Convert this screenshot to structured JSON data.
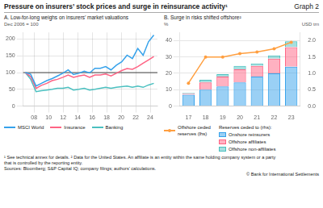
{
  "title": "Pressure on insurers’ stock prices and surge in reinsurance activity¹",
  "graph_label": "Graph 2",
  "footnotes": [
    "¹ See technical annex for details.   ² Data for the United States. An affiliate is an entity within the same holding company system or a party",
    "that is controlled by the reporting entity.",
    "Sources: Bloomberg; S&P Capital IQ; company filings; authors’ calculations."
  ],
  "credit": "© Bank for International Settlements",
  "chart_data": [
    {
      "type": "line",
      "title": "A. Low-for-long weighs on insurers’ market valuations",
      "ylabel": "Dec 2006 = 100",
      "x": [
        2006.8,
        2007.5375,
        2008.275,
        2009.0125,
        2009.75,
        2010.4875,
        2011.225,
        2011.9625,
        2012.7,
        2013.4375,
        2014.175,
        2014.9125,
        2015.65,
        2016.3875,
        2017.125,
        2017.8625,
        2018.6,
        2019.3375,
        2020.075,
        2020.8125,
        2021.55,
        2022.2875,
        2023.025,
        2023.7625,
        2024.5
      ],
      "xlim": [
        2006.5,
        2025.0
      ],
      "xticks": [
        {
          "value": 2008,
          "label": "08"
        },
        {
          "value": 2010,
          "label": "10"
        },
        {
          "value": 2012,
          "label": "12"
        },
        {
          "value": 2014,
          "label": "14"
        },
        {
          "value": 2016,
          "label": "16"
        },
        {
          "value": 2018,
          "label": "18"
        },
        {
          "value": 2020,
          "label": "20"
        },
        {
          "value": 2022,
          "label": "22"
        },
        {
          "value": 2024,
          "label": "24"
        }
      ],
      "ylim": [
        0,
        220
      ],
      "yticks": [
        0,
        50,
        100,
        150,
        200
      ],
      "hline": 100,
      "grid": true,
      "legend": "bottom",
      "series": [
        {
          "name": "MSCI World",
          "values": [
            100,
            95,
            60,
            68,
            76,
            82,
            90,
            98,
            108,
            94,
            98,
            104,
            99,
            113,
            113,
            118,
            108,
            122,
            132,
            152,
            142,
            172,
            152,
            192,
            212
          ]
        },
        {
          "name": "Insurance",
          "values": [
            100,
            88,
            53,
            62,
            68,
            76,
            80,
            86,
            93,
            86,
            90,
            93,
            86,
            93,
            93,
            96,
            90,
            98,
            106,
            112,
            110,
            118,
            128,
            138,
            148
          ]
        },
        {
          "name": "Banking",
          "values": [
            100,
            80,
            43,
            46,
            48,
            50,
            53,
            53,
            56,
            48,
            50,
            53,
            48,
            50,
            53,
            56,
            53,
            56,
            58,
            60,
            56,
            60,
            56,
            63,
            68
          ]
        }
      ]
    },
    {
      "type": "bar",
      "title": "B. Surge in risks shifted offshore²",
      "ylabel": "%",
      "y2label": "USD trn",
      "categories": [
        "17",
        "18",
        "19",
        "20",
        "21",
        "22",
        "23"
      ],
      "stacked": true,
      "grid": "y",
      "legend": "bottom",
      "legend_title": "Reserves ceded to (rhs):",
      "ylim": [
        0,
        45
      ],
      "yticks": [
        0,
        10,
        20,
        30,
        40
      ],
      "y2lim": [
        0,
        2.25
      ],
      "y2ticks": [
        {
          "value": 0,
          "label": "0.0"
        },
        0.5,
        {
          "value": 1,
          "label": "1.0"
        },
        1.5,
        {
          "value": 2,
          "label": "2.0"
        }
      ],
      "series": [
        {
          "name": "Onshore reinsurers",
          "values": [
            7.0,
            10.0,
            12.0,
            14.5,
            18.0,
            20.0,
            24.0
          ]
        },
        {
          "name": "Offshore affiliates",
          "values": [
            0.5,
            4.5,
            6.0,
            8.0,
            6.5,
            9.0,
            12.0
          ]
        },
        {
          "name": "Offshore non-affiliates",
          "values": [
            0.5,
            1.5,
            1.5,
            2.0,
            1.5,
            2.0,
            3.5
          ]
        },
        {
          "name": "Offshore ceded\nreserves (lhs)",
          "type": "line",
          "axis": "y2",
          "marker": "circle",
          "values": [
            0.7,
            1.5,
            1.5,
            1.6,
            1.65,
            1.75,
            1.95
          ]
        }
      ]
    }
  ]
}
